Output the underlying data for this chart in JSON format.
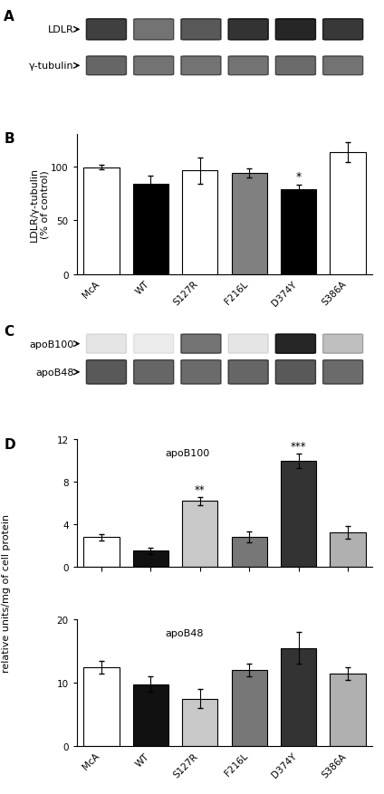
{
  "categories": [
    "McA",
    "WT",
    "S127R",
    "F216L",
    "D374Y",
    "S386A"
  ],
  "bar_colors_B": [
    "white",
    "black",
    "white",
    "#808080",
    "black",
    "white"
  ],
  "values_B": [
    99,
    84,
    96,
    94,
    79,
    113
  ],
  "errors_B": [
    2,
    7,
    12,
    4,
    4,
    9
  ],
  "ylabel_B": "LDLR/γ-tubulin\n(% of control)",
  "ylim_B": [
    0,
    130
  ],
  "yticks_B": [
    0,
    50,
    100
  ],
  "sig_B_idx": 4,
  "sig_B_label": "*",
  "bar_colors_D100": [
    "white",
    "#111111",
    "#c8c8c8",
    "#777777",
    "#333333",
    "#b0b0b0"
  ],
  "values_D100": [
    2.8,
    1.5,
    6.2,
    2.8,
    10.0,
    3.2
  ],
  "errors_D100": [
    0.3,
    0.3,
    0.4,
    0.5,
    0.7,
    0.6
  ],
  "ylim_D100": [
    0,
    12
  ],
  "yticks_D100": [
    0,
    4,
    8,
    12
  ],
  "sig_D100": [
    [
      2,
      "**"
    ],
    [
      4,
      "***"
    ]
  ],
  "bar_colors_D48": [
    "white",
    "#111111",
    "#c8c8c8",
    "#777777",
    "#333333",
    "#b0b0b0"
  ],
  "values_D48": [
    12.5,
    9.8,
    7.5,
    12.0,
    15.5,
    11.5
  ],
  "errors_D48": [
    1.0,
    1.2,
    1.5,
    1.0,
    2.5,
    1.0
  ],
  "ylim_D48": [
    0,
    20
  ],
  "yticks_D48": [
    0,
    10,
    20
  ],
  "ylabel_D": "relative units/mg of cell protein",
  "background_color": "white",
  "blot_bg": "#d0d0d0",
  "font_size": 8,
  "panel_label_fontsize": 11,
  "tick_fontsize": 7.5
}
